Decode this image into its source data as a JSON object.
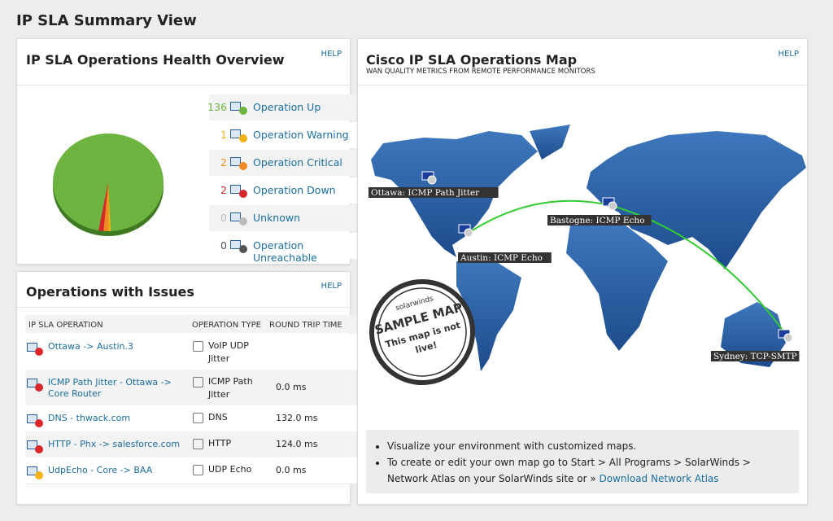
{
  "page": {
    "title": "IP SLA Summary View"
  },
  "health": {
    "title": "IP SLA Operations Health Overview",
    "help": "HELP",
    "items": [
      {
        "count": 136,
        "label": "Operation Up",
        "color": "#6cb33f"
      },
      {
        "count": 1,
        "label": "Operation Warning",
        "color": "#f3b21a"
      },
      {
        "count": 2,
        "label": "Operation Critical",
        "color": "#f08a24"
      },
      {
        "count": 2,
        "label": "Operation Down",
        "color": "#d9262b"
      },
      {
        "count": 0,
        "label": "Unknown",
        "color": "#bbbbbb"
      },
      {
        "count": 0,
        "label": "Operation Unreachable",
        "color": "#555555"
      }
    ]
  },
  "issues": {
    "title": "Operations with Issues",
    "help": "HELP",
    "columns": [
      "IP SLA OPERATION",
      "OPERATION TYPE",
      "ROUND TRIP TIME"
    ],
    "rows": [
      {
        "operation": "Ottawa -> Austin.3",
        "type": "VoIP UDP Jitter",
        "color": "#d9262b"
      },
      {
        "operation": "ICMP Path Jitter - Ottawa -> Core Router",
        "type": "ICMP Path Jitter",
        "rtt": "0.0 ms",
        "color": "#d9262b"
      },
      {
        "operation": "DNS - thwack.com",
        "type": "DNS",
        "rtt": "132.0 ms",
        "color": "#d9262b"
      },
      {
        "operation": "HTTP - Phx -> salesforce.com",
        "type": "HTTP",
        "rtt": "124.0 ms",
        "color": "#d9262b"
      },
      {
        "operation": "UdpEcho - Core -> BAA",
        "type": "UDP Echo",
        "rtt": "0.0 ms",
        "color": "#f3b21a"
      }
    ]
  },
  "map": {
    "title": "Cisco IP SLA Operations Map",
    "subtitle": "WAN QUALITY METRICS FROM REMOTE PERFORMANCE MONITORS",
    "help": "HELP",
    "labels": [
      "Ottawa: ICMP Path Jitter",
      "Austin: ICMP Echo",
      "Bastogne: ICMP Echo",
      "Sydney: TCP-SMTP"
    ],
    "stamp": [
      "solarwinds",
      "SAMPLE MAP",
      "This map is not",
      "live!"
    ],
    "bullets": [
      "Visualize your environment with customized maps.",
      "To create or edit your own map go to Start > All Programs > SolarWinds > Network Atlas on your SolarWinds site or »"
    ],
    "link": "Download Network Atlas"
  }
}
